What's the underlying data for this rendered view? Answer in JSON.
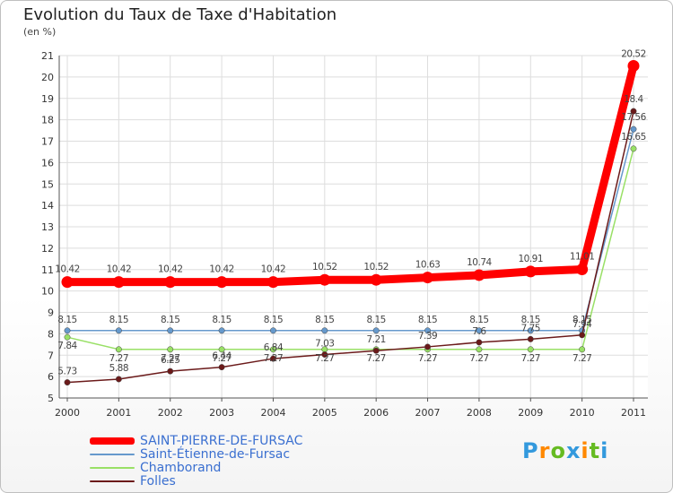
{
  "chart_data": {
    "type": "line",
    "title": "Evolution du Taux de Taxe d'Habitation",
    "subtitle": "(en %)",
    "xlabel": "",
    "ylabel": "(en %)",
    "categories": [
      "2000",
      "2001",
      "2002",
      "2003",
      "2004",
      "2005",
      "2006",
      "2007",
      "2008",
      "2009",
      "2010",
      "2011"
    ],
    "ylim": [
      5,
      21
    ],
    "yticks": [
      "5",
      "6",
      "7",
      "8",
      "9",
      "10",
      "11",
      "12",
      "13",
      "14",
      "15",
      "16",
      "17",
      "18",
      "19",
      "20",
      "21"
    ],
    "grid": true,
    "legend_position": "bottom-left",
    "series": [
      {
        "name": "SAINT-PIERRE-DE-FURSAC",
        "color": "#ff0000",
        "values": [
          10.42,
          10.42,
          10.42,
          10.42,
          10.42,
          10.52,
          10.52,
          10.63,
          10.74,
          10.91,
          11.01,
          20.52
        ],
        "labels": [
          "10.42",
          "10.42",
          "10.42",
          "10.42",
          "10.42",
          "10.52",
          "10.52",
          "10.63",
          "10.74",
          "10.91",
          "11.01",
          "20.52"
        ]
      },
      {
        "name": "Saint-Étienne-de-Fursac",
        "color": "#6699cc",
        "values": [
          8.15,
          8.15,
          8.15,
          8.15,
          8.15,
          8.15,
          8.15,
          8.15,
          8.15,
          8.15,
          8.15,
          17.56
        ],
        "labels": [
          "8.15",
          "8.15",
          "8.15",
          "8.15",
          "8.15",
          "8.15",
          "8.15",
          "8.15",
          "8.15",
          "8.15",
          "8.15",
          "17.56"
        ]
      },
      {
        "name": "Chamborand",
        "color": "#99e066",
        "values": [
          7.84,
          7.27,
          7.27,
          7.27,
          7.27,
          7.27,
          7.27,
          7.27,
          7.27,
          7.27,
          7.27,
          16.65
        ],
        "labels": [
          "7.84",
          "7.27",
          "7.27",
          "7.27",
          "7.27",
          "7.27",
          "7.27",
          "7.27",
          "7.27",
          "7.27",
          "7.27",
          "16.65"
        ]
      },
      {
        "name": "Folles",
        "color": "#6b1a1a",
        "values": [
          5.73,
          5.88,
          6.25,
          6.44,
          6.84,
          7.03,
          7.21,
          7.39,
          7.6,
          7.75,
          7.94,
          18.4
        ],
        "labels": [
          "5.73",
          "5.88",
          "6.25",
          "6.44",
          "6.84",
          "7.03",
          "7.21",
          "7.39",
          "7.6",
          "7.75",
          "7.94",
          "18.4"
        ]
      }
    ]
  },
  "logo": {
    "letters": [
      "P",
      "r",
      "o",
      "x",
      "i",
      "t",
      "i"
    ],
    "colors": [
      "#3399dd",
      "#ff8800",
      "#66bb22",
      "#3399dd",
      "#ff8800",
      "#66bb22",
      "#3399dd"
    ]
  }
}
